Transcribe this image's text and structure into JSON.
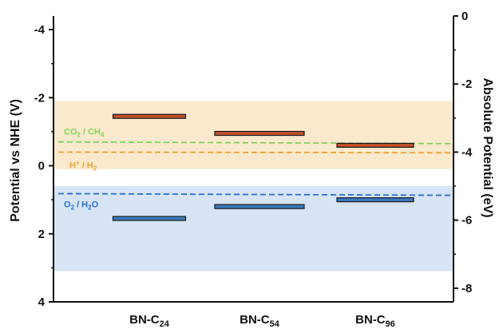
{
  "chart_data": {
    "type": "scatter",
    "title": "",
    "ylabel": "Potential vs NHE (V)",
    "y2label": "Absolute Potential (eV)",
    "ylim": [
      -4.4,
      4
    ],
    "y_inverted": true,
    "yticks": [
      -4,
      -2,
      0,
      2,
      4
    ],
    "ytick_labels": [
      "-4",
      "-2",
      "0",
      "2",
      "4"
    ],
    "y2lim": [
      0,
      -8.4
    ],
    "y2ticks": [
      0,
      -2,
      -4,
      -6,
      -8
    ],
    "y2tick_labels": [
      "0",
      "-2",
      "-4",
      "-6",
      "-8"
    ],
    "categories": [
      {
        "base": "BN-C",
        "sub": "24"
      },
      {
        "base": "BN-C",
        "sub": "54"
      },
      {
        "base": "BN-C",
        "sub": "96"
      }
    ],
    "series": [
      {
        "key": "cb",
        "color": "#c0502a",
        "values": [
          -1.45,
          -0.95,
          -0.6
        ]
      },
      {
        "key": "vb",
        "color": "#3a79bd",
        "values": [
          1.55,
          1.2,
          1.0
        ]
      }
    ],
    "bands": [
      {
        "from": -1.9,
        "to": 0.1,
        "color": "#fbe9cd"
      },
      {
        "from": 0.6,
        "to": 3.1,
        "color": "#d6e4f6"
      }
    ],
    "reference_lines": [
      {
        "key": "co2",
        "y_start": -0.7,
        "y_end": -0.65,
        "color": "#7fd35a",
        "label_parts": [
          {
            "t": "CO",
            "s": "n"
          },
          {
            "t": "2",
            "s": "sub"
          },
          {
            "t": " / CH",
            "s": "n"
          },
          {
            "t": "4",
            "s": "sub"
          }
        ]
      },
      {
        "key": "h2",
        "y_start": -0.4,
        "y_end": -0.38,
        "color": "#f0a030",
        "label_parts": [
          {
            "t": "H",
            "s": "n"
          },
          {
            "t": "+",
            "s": "sup"
          },
          {
            "t": " / H",
            "s": "n"
          },
          {
            "t": "2",
            "s": "sub"
          }
        ]
      },
      {
        "key": "o2",
        "y_start": 0.82,
        "y_end": 0.87,
        "color": "#2b6fd1",
        "label_parts": [
          {
            "t": "O",
            "s": "n"
          },
          {
            "t": "2",
            "s": "sub"
          },
          {
            "t": " / H",
            "s": "n"
          },
          {
            "t": "2",
            "s": "sub"
          },
          {
            "t": "O",
            "s": "n"
          }
        ]
      }
    ],
    "grid": false,
    "legend": "none"
  }
}
